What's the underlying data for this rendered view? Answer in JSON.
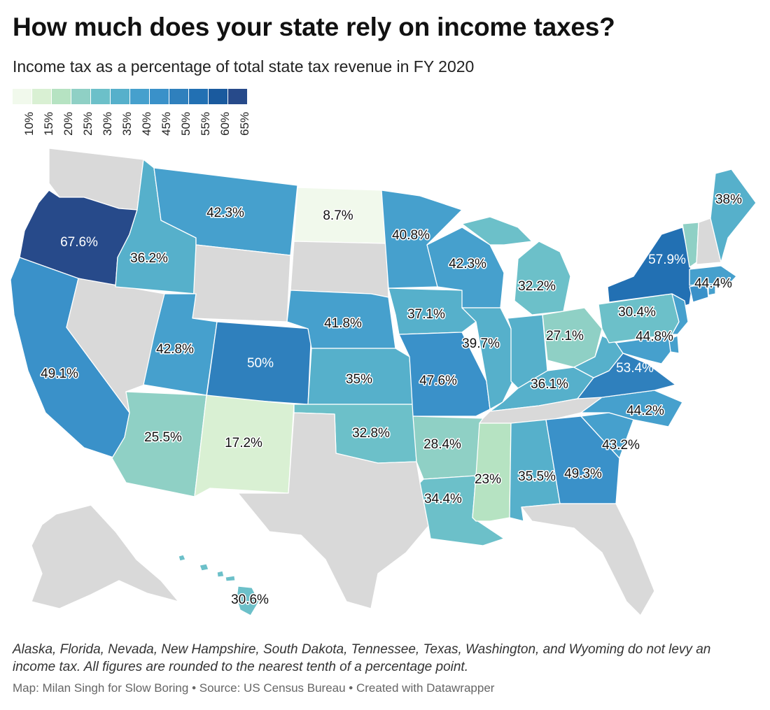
{
  "title": "How much does your state rely on income taxes?",
  "subtitle": "Income tax as a percentage of total state tax revenue in FY 2020",
  "legend": {
    "labels": [
      "10%",
      "15%",
      "20%",
      "25%",
      "30%",
      "35%",
      "40%",
      "45%",
      "50%",
      "55%",
      "60%",
      "65%"
    ],
    "colors": [
      "#f1f9ec",
      "#d9f0d3",
      "#b6e3c2",
      "#8fd0c5",
      "#6cc0c9",
      "#56b0cb",
      "#46a0cd",
      "#3a91c9",
      "#2f80bd",
      "#2270b3",
      "#1a5a9e",
      "#274a8a"
    ]
  },
  "no_tax_color": "#d9d9d9",
  "chart_data": {
    "type": "choropleth",
    "title": "How much does your state rely on income taxes?",
    "subtitle": "Income tax as a percentage of total state tax revenue in FY 2020",
    "unit": "%",
    "values": {
      "OR": 67.6,
      "CA": 49.1,
      "ID": 36.2,
      "MT": 42.3,
      "ND": 8.7,
      "UT": 42.8,
      "CO": 50,
      "AZ": 25.5,
      "NM": 17.2,
      "NE": 41.8,
      "KS": 35,
      "OK": 32.8,
      "MN": 40.8,
      "IA": 37.1,
      "MO": 47.6,
      "AR": 28.4,
      "LA": 34.4,
      "WI": 42.3,
      "IL": 39.7,
      "MI": 32.2,
      "IN": 36.1,
      "KY": 36.1,
      "OH": 27.1,
      "MS": 23,
      "AL": 35.5,
      "GA": 49.3,
      "SC": 43.2,
      "NC": 44.2,
      "VA": 53.4,
      "WV": 36.1,
      "PA": 30.4,
      "NY": 57.9,
      "MA": 44.4,
      "ME": 38,
      "VT": 28.0,
      "NJ": 44.8,
      "MD": 44.8,
      "DE": 44.8,
      "CT": 48.0,
      "RI": 44.4,
      "HI": 30.6
    },
    "labels": {
      "OR": "67.6%",
      "CA": "49.1%",
      "ID": "36.2%",
      "MT": "42.3%",
      "ND": "8.7%",
      "UT": "42.8%",
      "CO": "50%",
      "AZ": "25.5%",
      "NM": "17.2%",
      "NE": "41.8%",
      "KS": "35%",
      "OK": "32.8%",
      "MN": "40.8%",
      "IA": "37.1%",
      "MO": "47.6%",
      "AR": "28.4%",
      "LA": "34.4%",
      "WI": "42.3%",
      "IL": "39.7%",
      "MI": "32.2%",
      "KY": "36.1%",
      "OH": "27.1%",
      "MS": "23%",
      "AL": "35.5%",
      "GA": "49.3%",
      "SC": "43.2%",
      "NC": "44.2%",
      "VA": "53.4%",
      "PA": "30.4%",
      "NY": "57.9%",
      "MA": "44.4%",
      "ME": "38%",
      "NJ": "44.8%",
      "HI": "30.6%"
    },
    "no_income_tax": [
      "AK",
      "FL",
      "NV",
      "NH",
      "SD",
      "TN",
      "TX",
      "WA",
      "WY"
    ]
  },
  "footnote": "Alaska, Florida, Nevada, New Hampshire, South Dakota, Tennessee, Texas, Washington, and Wyoming do not levy an income tax. All figures are rounded to the nearest tenth of a percentage point.",
  "credit": "Map: Milan Singh for Slow Boring • Source: US Census Bureau • Created with Datawrapper"
}
